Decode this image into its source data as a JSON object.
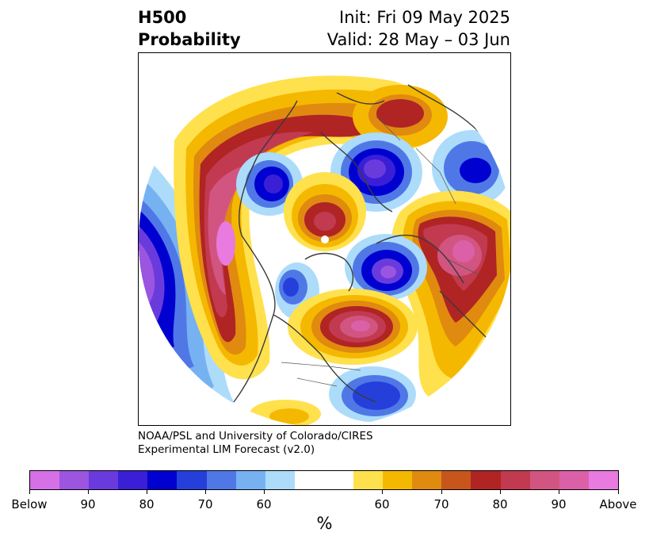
{
  "title": {
    "left_line1": "H500",
    "left_line2": "Probability",
    "right_line1": "Init: Fri 09 May 2025",
    "right_line2": "Valid: 28 May – 03 Jun"
  },
  "credit": {
    "line1": "NOAA/PSL and University of Colorado/CIRES",
    "line2": "Experimental LIM Forecast (v2.0)"
  },
  "colorbar": {
    "unit": "%",
    "colors": [
      "#d670e6",
      "#9b55e0",
      "#6a3bdc",
      "#3a1fd6",
      "#0000d0",
      "#2540da",
      "#4f78e6",
      "#76b2f2",
      "#acdcfa",
      "#ffffff",
      "#ffe14d",
      "#f5b800",
      "#e08a10",
      "#c8561c",
      "#b02424",
      "#c23a50",
      "#d15580",
      "#dc60a8",
      "#e87ae0"
    ],
    "tick_labels": [
      "Below",
      "90",
      "80",
      "70",
      "60",
      "60",
      "70",
      "80",
      "90",
      "Above"
    ]
  },
  "map": {
    "projection": "north-polar-stereographic",
    "anomalies": [
      {
        "sign": "above",
        "level": "Above",
        "location": "Central Atlantic / Baffin"
      },
      {
        "sign": "above",
        "level": "90",
        "location": "North Pacific"
      },
      {
        "sign": "above",
        "level": "90",
        "location": "Western Russia"
      },
      {
        "sign": "above",
        "level": "80",
        "location": "Northern Europe"
      },
      {
        "sign": "below",
        "level": "90",
        "location": "Arctic Ocean"
      },
      {
        "sign": "below",
        "level": "80",
        "location": "Eastern Siberia"
      },
      {
        "sign": "below",
        "level": "80",
        "location": "Alaska"
      },
      {
        "sign": "below",
        "level": "Below",
        "location": "Western edge"
      }
    ]
  }
}
